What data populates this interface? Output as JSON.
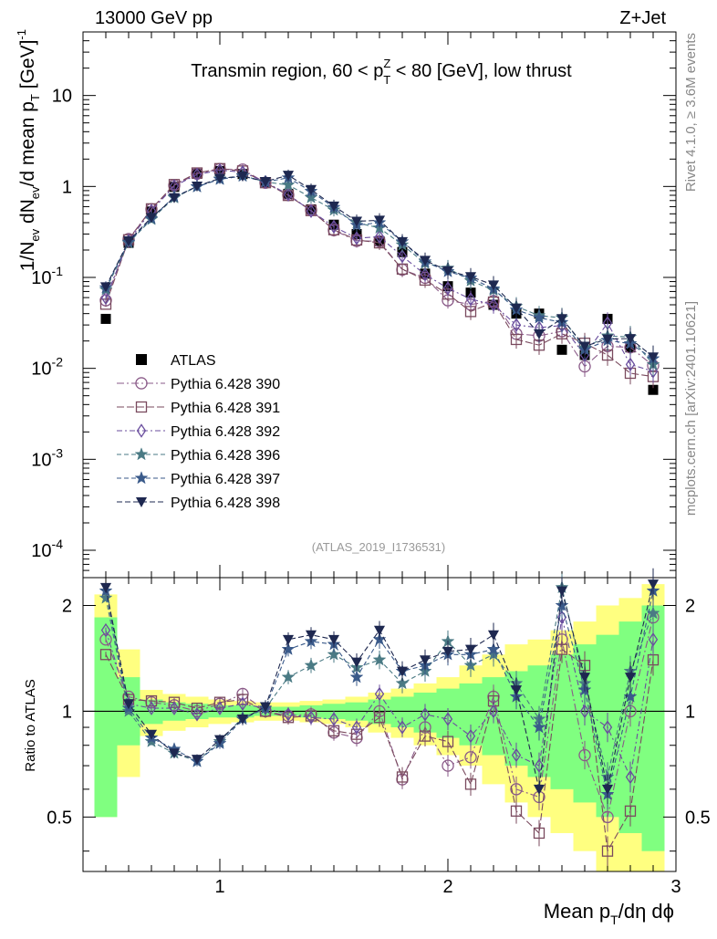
{
  "header": {
    "left": "13000 GeV pp",
    "right": "Z+Jet",
    "subtitle_pre": "Transmin region, 60 < p",
    "subtitle_sup": "Z",
    "subtitle_sub": "T",
    "subtitle_post": " < 80 [GeV], low thrust",
    "watermark": "(ATLAS_2019_I1736531)",
    "side_rivet": "Rivet 4.1.0, ≥ 3.6M events",
    "side_mcplots": "mcplots.cern.ch [arXiv:2401.10621]"
  },
  "labels": {
    "y_main": "1/N_ev dN_ev/d mean p_T [GeV]^-1",
    "y_main_parts": [
      "1/N",
      "ev",
      " dN",
      "ev",
      "/d mean p",
      "T",
      " [GeV]",
      "-1"
    ],
    "y_ratio": "Ratio to ATLAS",
    "x": "Mean p_T/dη dϕ",
    "x_parts": [
      "Mean p",
      "T",
      "/dη dϕ"
    ]
  },
  "colors": {
    "data": "#000000",
    "yellow_band": "#ffff80",
    "green_band": "#80ff80"
  },
  "chart_data": {
    "type": "line",
    "title": "Transmin region, 60 < pT^Z < 80 [GeV], low thrust",
    "xlabel": "Mean pT/dη dϕ",
    "ylabel": "1/Nev dNev/d mean pT [GeV]^-1",
    "ratio_ylabel": "Ratio to ATLAS",
    "xlim": [
      0.4,
      3.0
    ],
    "ylim": [
      5e-05,
      50
    ],
    "yscale": "log",
    "ratio_ylim": [
      0.35,
      2.4
    ],
    "x_ticks": [
      "1",
      "2",
      "3"
    ],
    "y_ticks": [
      "10",
      "1",
      "10^-1",
      "10^-2",
      "10^-3",
      "10^-4"
    ],
    "ratio_ticks": [
      "2",
      "1",
      "0.5"
    ],
    "x": [
      0.5,
      0.6,
      0.7,
      0.8,
      0.9,
      1.0,
      1.1,
      1.2,
      1.3,
      1.4,
      1.5,
      1.6,
      1.7,
      1.8,
      1.9,
      2.0,
      2.1,
      2.2,
      2.3,
      2.4,
      2.5,
      2.6,
      2.7,
      2.8,
      2.9
    ],
    "data": {
      "name": "ATLAS",
      "values": [
        0.035,
        0.24,
        0.53,
        0.99,
        1.38,
        1.48,
        1.37,
        1.1,
        0.83,
        0.56,
        0.38,
        0.3,
        0.25,
        0.19,
        0.11,
        0.08,
        0.068,
        0.05,
        0.04,
        0.04,
        0.016,
        0.014,
        0.035,
        0.017,
        0.0058
      ],
      "ratio_yellow": [
        [
          0.5,
          2.15
        ],
        [
          0.65,
          1.5
        ],
        [
          0.85,
          1.15
        ],
        [
          0.88,
          1.12
        ],
        [
          0.9,
          1.1
        ],
        [
          0.92,
          1.08
        ],
        [
          0.93,
          1.07
        ],
        [
          0.94,
          1.06
        ],
        [
          0.94,
          1.06
        ],
        [
          0.93,
          1.07
        ],
        [
          0.92,
          1.08
        ],
        [
          0.9,
          1.1
        ],
        [
          0.87,
          1.13
        ],
        [
          0.84,
          1.16
        ],
        [
          0.8,
          1.2
        ],
        [
          0.75,
          1.25
        ],
        [
          0.7,
          1.35
        ],
        [
          0.62,
          1.45
        ],
        [
          0.55,
          1.55
        ],
        [
          0.5,
          1.6
        ],
        [
          0.45,
          1.7
        ],
        [
          0.4,
          1.8
        ],
        [
          0.35,
          2.0
        ],
        [
          0.35,
          2.1
        ],
        [
          0.3,
          2.3
        ]
      ],
      "ratio_green": [
        [
          0.5,
          1.85
        ],
        [
          0.8,
          1.25
        ],
        [
          0.92,
          1.08
        ],
        [
          0.94,
          1.06
        ],
        [
          0.95,
          1.05
        ],
        [
          0.96,
          1.04
        ],
        [
          0.96,
          1.04
        ],
        [
          0.97,
          1.03
        ],
        [
          0.97,
          1.03
        ],
        [
          0.96,
          1.04
        ],
        [
          0.95,
          1.05
        ],
        [
          0.94,
          1.06
        ],
        [
          0.92,
          1.08
        ],
        [
          0.9,
          1.1
        ],
        [
          0.87,
          1.13
        ],
        [
          0.84,
          1.16
        ],
        [
          0.8,
          1.2
        ],
        [
          0.75,
          1.25
        ],
        [
          0.7,
          1.3
        ],
        [
          0.65,
          1.35
        ],
        [
          0.6,
          1.45
        ],
        [
          0.55,
          1.55
        ],
        [
          0.5,
          1.65
        ],
        [
          0.45,
          1.8
        ],
        [
          0.4,
          2.0
        ]
      ]
    },
    "series": [
      {
        "name": "Pythia 6.428 390",
        "color": "#8a5a88",
        "marker": "circle",
        "dash": "8,3,2,3",
        "ratio": [
          1.6,
          1.1,
          1.06,
          1.04,
          1.0,
          1.05,
          1.12,
          1.0,
          0.97,
          0.98,
          0.87,
          0.84,
          1.0,
          0.64,
          0.9,
          0.7,
          0.74,
          1.1,
          0.6,
          0.57,
          1.6,
          0.75,
          0.5,
          1.0,
          1.85
        ]
      },
      {
        "name": "Pythia 6.428 391",
        "color": "#7a4a5e",
        "marker": "square",
        "dash": "8,3",
        "ratio": [
          1.45,
          1.08,
          1.07,
          1.06,
          1.02,
          1.06,
          1.08,
          1.0,
          0.96,
          0.97,
          0.88,
          0.86,
          0.96,
          0.65,
          0.85,
          0.82,
          0.62,
          1.07,
          0.52,
          0.45,
          1.5,
          1.35,
          0.4,
          0.52,
          1.4
        ]
      },
      {
        "name": "Pythia 6.428 392",
        "color": "#6a4e9e",
        "marker": "diamond",
        "dash": "6,3,2,3",
        "ratio": [
          1.7,
          1.05,
          1.02,
          1.02,
          0.98,
          1.02,
          1.05,
          1.02,
          0.98,
          0.96,
          0.95,
          0.9,
          1.12,
          0.9,
          0.98,
          0.95,
          0.85,
          1.0,
          0.75,
          0.7,
          1.85,
          1.0,
          0.9,
          0.65,
          1.6
        ]
      },
      {
        "name": "Pythia 6.428 396",
        "color": "#4a7a84",
        "marker": "star",
        "dash": "5,3",
        "ratio": [
          2.1,
          1.0,
          0.82,
          0.76,
          0.72,
          0.82,
          0.96,
          1.02,
          1.25,
          1.35,
          1.45,
          1.33,
          1.4,
          1.2,
          1.3,
          1.58,
          1.35,
          1.45,
          1.2,
          0.95,
          2.25,
          1.2,
          0.65,
          1.3,
          1.9
        ]
      },
      {
        "name": "Pythia 6.428 397",
        "color": "#3a5a8a",
        "marker": "star",
        "dash": "5,3",
        "ratio": [
          2.2,
          1.02,
          0.84,
          0.78,
          0.72,
          0.81,
          0.95,
          1.02,
          1.5,
          1.58,
          1.55,
          1.25,
          1.6,
          1.3,
          1.35,
          1.45,
          1.45,
          1.5,
          1.1,
          0.9,
          2.0,
          1.15,
          0.58,
          1.1,
          2.2
        ]
      },
      {
        "name": "Pythia 6.428 398",
        "color": "#1e2850",
        "marker": "triangle-down",
        "dash": "6,3",
        "ratio": [
          2.25,
          1.05,
          0.86,
          0.76,
          0.73,
          0.83,
          0.95,
          1.03,
          1.6,
          1.65,
          1.6,
          1.38,
          1.7,
          1.3,
          1.4,
          1.48,
          1.5,
          1.65,
          1.15,
          0.6,
          2.2,
          1.25,
          0.6,
          1.25,
          2.3
        ]
      }
    ]
  }
}
